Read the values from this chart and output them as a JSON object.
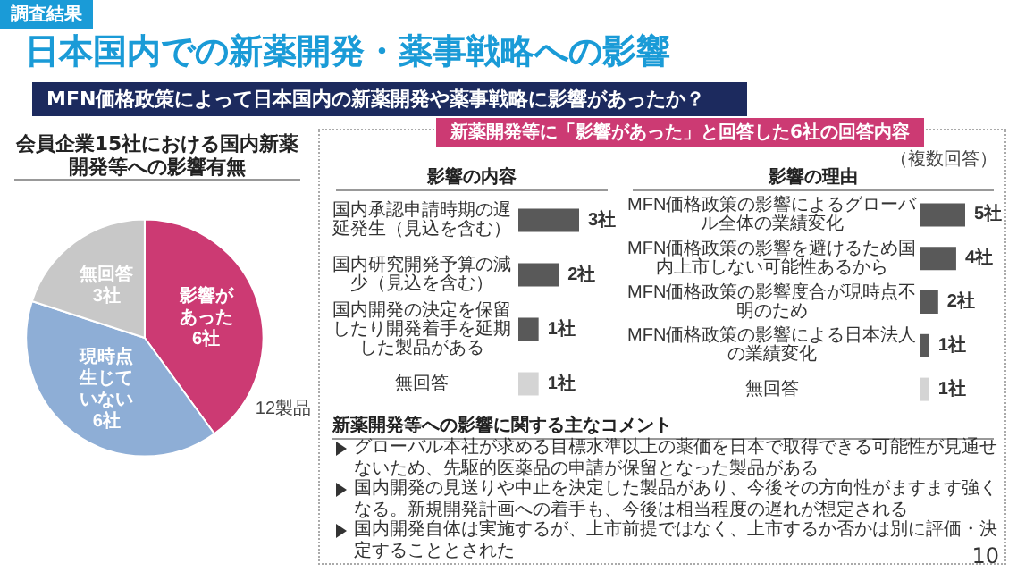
{
  "chart_data": [
    {
      "type": "other",
      "title": "日本国内での新薬開発・薬事戦略への影響",
      "subtitle": "MFN価格政策によって日本国内の新薬開発や薬事戦略に影響があったか？",
      "annotations": [
        "調査結果",
        "新薬開発等に「影響があった」と回答した6社の回答内容",
        "（複数回答）",
        "新薬開発等への影響に関する主なコメント",
        "グローバル本社が求める目標水準以上の薬価を日本で取得できる可能性が見通せないため、先駆的医薬品の申請が保留となった製品がある",
        "国内開発の見送りや中止を決定した製品があり、今後その方向性がますます強くなる。新規開発計画への着手も、今後は相当程度の遅れが想定される",
        "国内開発自体は実施するが、上市前提ではなく、上市するか否かは別に評価・決定することとされた",
        "10"
      ]
    },
    {
      "type": "pie",
      "title": "会員企業15社における国内新薬開発等への影響有無",
      "categories": [
        "影響があった",
        "現時点生じていない",
        "無回答"
      ],
      "values": [
        6,
        6,
        3
      ],
      "value_labels": [
        "6社",
        "6社",
        "3社"
      ],
      "colors": [
        "#cc3a73",
        "#8eaed6",
        "#c8c8c8"
      ],
      "annotations": [
        "12製品"
      ]
    },
    {
      "type": "bar",
      "orientation": "horizontal",
      "title": "影響の内容",
      "categories": [
        "国内承認申請時期の遅延発生（見込を含む）",
        "国内研究開発予算の減少（見込を含む）",
        "国内開発の決定を保留したり開発着手を延期した製品がある",
        "無回答"
      ],
      "values": [
        3,
        2,
        1,
        1
      ],
      "value_labels": [
        "3社",
        "2社",
        "1社",
        "1社"
      ],
      "colors": [
        "#595959",
        "#595959",
        "#595959",
        "#d4d4d4"
      ]
    },
    {
      "type": "bar",
      "orientation": "horizontal",
      "title": "影響の理由",
      "categories": [
        "MFN価格政策の影響によるグローバル全体の業績変化",
        "MFN価格政策の影響を避けるため国内上市しない可能性あるから",
        "MFN価格政策の影響度合が現時点不明のため",
        "MFN価格政策の影響による日本法人の業績変化",
        "無回答"
      ],
      "values": [
        5,
        4,
        2,
        1,
        1
      ],
      "value_labels": [
        "5社",
        "4社",
        "2社",
        "1社",
        "1社"
      ],
      "colors": [
        "#595959",
        "#595959",
        "#595959",
        "#595959",
        "#d4d4d4"
      ]
    }
  ]
}
